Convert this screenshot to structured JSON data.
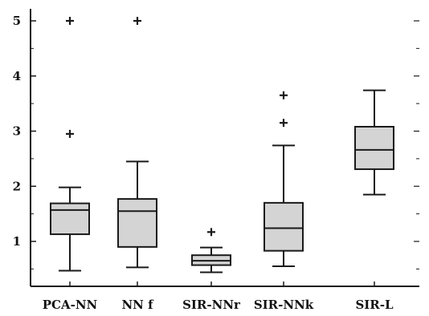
{
  "chart_data": {
    "type": "boxplot",
    "title": "",
    "xlabel": "",
    "ylabel": "",
    "ylim": [
      0.35,
      5.15
    ],
    "yticks": [
      1,
      2,
      3,
      4,
      5
    ],
    "categories": [
      "PCA-NN",
      "NN f",
      "SIR-NNr",
      "SIR-NNk",
      "SIR-L"
    ],
    "series": [
      {
        "category": "PCA-NN",
        "whisker_low": 0.47,
        "q1": 1.13,
        "median": 1.57,
        "q3": 1.69,
        "whisker_high": 1.98,
        "outliers": [
          2.95,
          5.0
        ]
      },
      {
        "category": "NN f",
        "whisker_low": 0.53,
        "q1": 0.9,
        "median": 1.55,
        "q3": 1.77,
        "whisker_high": 2.45,
        "outliers": [
          5.0
        ]
      },
      {
        "category": "SIR-NNr",
        "whisker_low": 0.44,
        "q1": 0.57,
        "median": 0.65,
        "q3": 0.75,
        "whisker_high": 0.89,
        "outliers": [
          1.17
        ]
      },
      {
        "category": "SIR-NNk",
        "whisker_low": 0.55,
        "q1": 0.83,
        "median": 1.24,
        "q3": 1.7,
        "whisker_high": 2.74,
        "outliers": [
          3.15,
          3.65
        ]
      },
      {
        "category": "SIR-L",
        "whisker_low": 1.85,
        "q1": 2.31,
        "median": 2.66,
        "q3": 3.08,
        "whisker_high": 3.74,
        "outliers": []
      }
    ],
    "colors": {
      "box_fill": "#d4d4d4",
      "stroke": "#1a1a1a",
      "background": "#ffffff"
    },
    "grid": false,
    "legend": "none"
  }
}
